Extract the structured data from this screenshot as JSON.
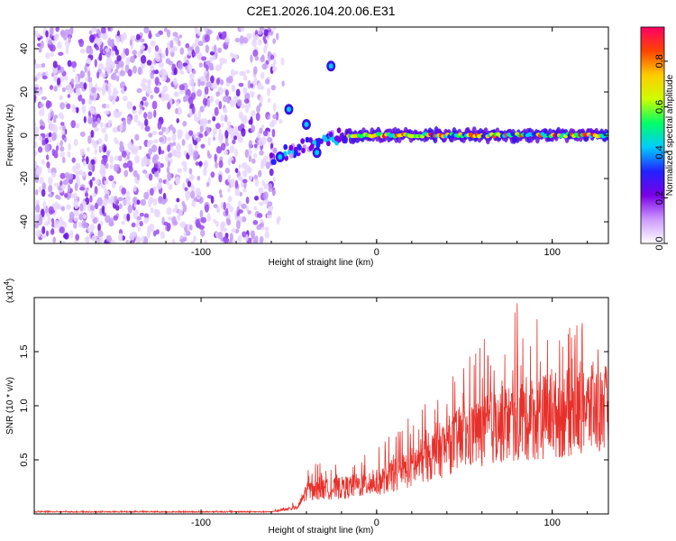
{
  "chart_data": [
    {
      "type": "heatmap",
      "title": "C2E1.2026.104.20.06.E31",
      "xlabel": "Height of straight line (km)",
      "ylabel": "Frequency (Hz)",
      "xlim": [
        -195,
        132
      ],
      "ylim": [
        -50,
        50
      ],
      "xticks": [
        -100,
        0,
        100
      ],
      "xtick_labels": [
        "-100",
        "0",
        "100"
      ],
      "yticks": [
        -40,
        -20,
        0,
        20,
        40
      ],
      "ytick_labels": [
        "-40",
        "-20",
        "0",
        "20",
        "40"
      ],
      "noise_region_x": [
        -195,
        -58
      ],
      "carrier": {
        "frequency_hz": 0,
        "x_start": -20,
        "x_end": 132
      },
      "features": [
        {
          "x": -50,
          "y": 12
        },
        {
          "x": -40,
          "y": 5
        },
        {
          "x": -26,
          "y": 32
        },
        {
          "x": -55,
          "y": -10
        },
        {
          "x": -34,
          "y": -8
        }
      ],
      "colorbar": {
        "label": "Normalized spectral amplitude",
        "range": [
          0,
          0.95
        ],
        "ticks": [
          "0.0",
          "0.2",
          "0.4",
          "0.6",
          "0.8"
        ],
        "colors": [
          "#ffffff",
          "#cc99ff",
          "#7a00e6",
          "#2222ff",
          "#00ccff",
          "#00ff66",
          "#ccff00",
          "#ffcc00",
          "#ff4400",
          "#ff0066"
        ]
      }
    },
    {
      "type": "line",
      "title": "",
      "xlabel": "Height of straight line (km)",
      "ylabel": "SNR (10 * v/v)",
      "y_scale_label": "(x10",
      "y_scale_exp": "4",
      "y_scale_close": ")",
      "xlim": [
        -195,
        132
      ],
      "ylim": [
        0,
        2.0
      ],
      "xticks": [
        -100,
        0,
        100
      ],
      "xtick_labels": [
        "-100",
        "0",
        "100"
      ],
      "yticks": [
        0.5,
        1.0,
        1.5
      ],
      "ytick_labels": [
        "0.5",
        "1.0",
        "1.5"
      ],
      "series": [
        {
          "name": "SNR",
          "color": "#e8302a",
          "envelope_x": [
            -195,
            -60,
            -45,
            -40,
            -20,
            0,
            20,
            40,
            60,
            80,
            100,
            120,
            132
          ],
          "envelope_mean": [
            0.02,
            0.02,
            0.06,
            0.22,
            0.25,
            0.3,
            0.45,
            0.65,
            0.8,
            0.9,
            0.95,
            1.0,
            1.0
          ],
          "envelope_max": [
            0.03,
            0.03,
            0.12,
            0.5,
            0.45,
            0.6,
            0.95,
            1.25,
            1.6,
            1.95,
            1.85,
            1.75,
            1.65
          ],
          "envelope_min": [
            0.01,
            0.01,
            0.03,
            0.06,
            0.06,
            0.08,
            0.1,
            0.15,
            0.2,
            0.2,
            0.2,
            0.25,
            0.25
          ]
        }
      ]
    }
  ]
}
